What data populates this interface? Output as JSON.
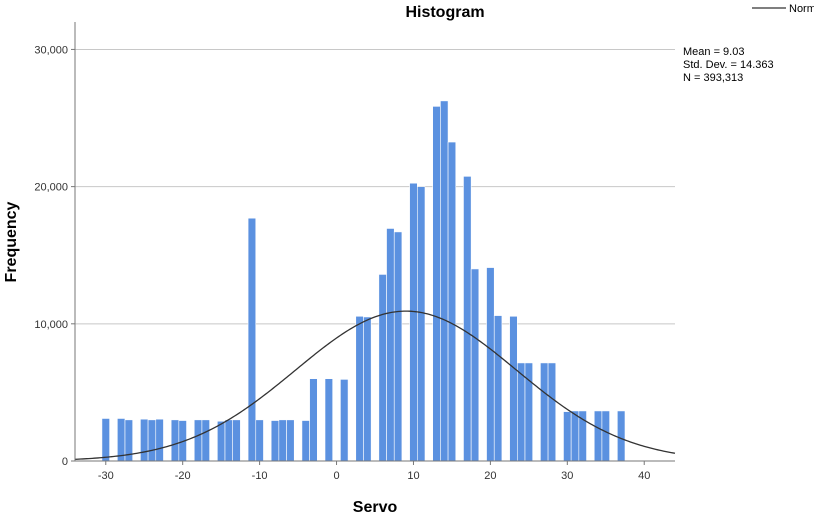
{
  "chart_data": {
    "type": "bar",
    "title": "Histogram",
    "xlabel": "Servo",
    "ylabel": "Frequency",
    "xlim": [
      -34,
      44
    ],
    "ylim": [
      0,
      32000
    ],
    "x_ticks": [
      -30,
      -20,
      -10,
      0,
      10,
      20,
      30,
      40
    ],
    "y_ticks": [
      0,
      10000,
      20000,
      30000
    ],
    "x_tick_labels": [
      "-30",
      "-20",
      "-10",
      "0",
      "10",
      "20",
      "30",
      "40"
    ],
    "y_tick_labels": [
      "0",
      "10,000",
      "20,000",
      "30,000"
    ],
    "grid": "horizontal",
    "bar_color": "#5b91e0",
    "curve_color": "#333333",
    "bin_width": 1,
    "bins": [
      -30,
      -28,
      -27,
      -25,
      -24,
      -23,
      -21,
      -20,
      -18,
      -17,
      -15,
      -14,
      -13,
      -11,
      -10,
      -8,
      -7,
      -6,
      -4,
      -3,
      -1,
      1,
      3,
      4,
      6,
      7,
      8,
      10,
      11,
      13,
      14,
      15,
      17,
      18,
      20,
      21,
      23,
      24,
      25,
      27,
      28,
      30,
      31,
      32,
      34,
      35,
      37
    ],
    "values": [
      3100,
      3100,
      3000,
      3050,
      3000,
      3050,
      3000,
      2950,
      3000,
      3000,
      2900,
      3000,
      3000,
      17700,
      3000,
      2950,
      3000,
      3000,
      2950,
      6000,
      6000,
      5950,
      10550,
      10500,
      13600,
      16950,
      16700,
      20250,
      20000,
      25850,
      26250,
      23250,
      20750,
      14000,
      14100,
      10600,
      10550,
      7150,
      7150,
      7150,
      7150,
      3600,
      3650,
      3650,
      3650,
      3650,
      3650
    ],
    "normal_curve": {
      "name": "Normal",
      "mean": 9.03,
      "std": 14.363,
      "n": 393313
    },
    "stats_text": [
      "Mean = 9.03",
      "Std. Dev. = 14.363",
      "N = 393,313"
    ],
    "legend": {
      "label": "Normal",
      "position": "top-right"
    }
  }
}
